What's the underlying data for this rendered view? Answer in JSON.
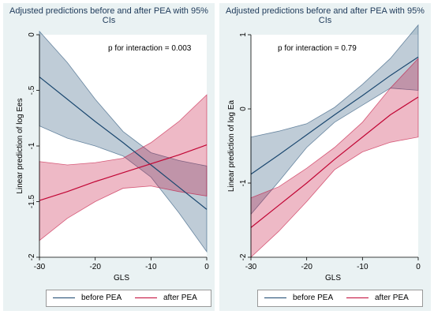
{
  "chart_data": [
    {
      "type": "line",
      "title": "Adjusted predictions before and after PEA with 95% CIs",
      "annotation": "p for interaction = 0.003",
      "xlabel": "GLS",
      "ylabel": "Linear prediction of log Ees",
      "xlim": [
        -30,
        0
      ],
      "ylim": [
        -2,
        0
      ],
      "xticks": [
        "-30",
        "-20",
        "-10",
        "0"
      ],
      "yticks": [
        "-2",
        "-1.5",
        "-1",
        "-.5",
        "0"
      ],
      "x": [
        -30,
        -25,
        -20,
        -15,
        -10,
        -5,
        0
      ],
      "series": [
        {
          "name": "before PEA",
          "color": "#1a476f",
          "values": [
            -0.38,
            -0.58,
            -0.78,
            -0.97,
            -1.17,
            -1.37,
            -1.57
          ],
          "lower": [
            -0.82,
            -0.93,
            -1.0,
            -1.09,
            -1.28,
            -1.6,
            -1.95
          ],
          "upper": [
            0.03,
            -0.25,
            -0.58,
            -0.87,
            -1.06,
            -1.13,
            -1.18
          ]
        },
        {
          "name": "after PEA",
          "color": "#c10534",
          "values": [
            -1.49,
            -1.41,
            -1.32,
            -1.24,
            -1.16,
            -1.08,
            -0.99
          ],
          "lower": [
            -1.85,
            -1.65,
            -1.5,
            -1.38,
            -1.36,
            -1.41,
            -1.45
          ],
          "upper": [
            -1.14,
            -1.17,
            -1.15,
            -1.11,
            -0.97,
            -0.78,
            -0.54
          ]
        }
      ],
      "legend_position": "bottom"
    },
    {
      "type": "line",
      "title": "Adjusted predictions before and after PEA with 95% CIs",
      "annotation": "p for interaction = 0.79",
      "xlabel": "GLS",
      "ylabel": "Linear prediction of log Ea",
      "xlim": [
        -30,
        0
      ],
      "ylim": [
        -2,
        1
      ],
      "xticks": [
        "-30",
        "-20",
        "-10",
        "0"
      ],
      "yticks": [
        "-2",
        "-1",
        "0",
        "1"
      ],
      "x": [
        -30,
        -25,
        -20,
        -15,
        -10,
        -5,
        0
      ],
      "series": [
        {
          "name": "before PEA",
          "color": "#1a476f",
          "values": [
            -0.88,
            -0.62,
            -0.35,
            -0.08,
            0.18,
            0.45,
            0.7
          ],
          "lower": [
            -1.42,
            -0.98,
            -0.52,
            -0.18,
            0.05,
            0.28,
            0.25
          ],
          "upper": [
            -0.38,
            -0.3,
            -0.2,
            0.02,
            0.33,
            0.68,
            1.13
          ]
        },
        {
          "name": "after PEA",
          "color": "#c10534",
          "values": [
            -1.6,
            -1.3,
            -1.0,
            -0.68,
            -0.38,
            -0.08,
            0.16
          ],
          "lower": [
            -2.0,
            -1.65,
            -1.25,
            -0.82,
            -0.58,
            -0.45,
            -0.38
          ],
          "upper": [
            -1.2,
            -1.05,
            -0.8,
            -0.52,
            -0.18,
            0.28,
            0.68
          ]
        }
      ],
      "legend_position": "bottom"
    }
  ]
}
